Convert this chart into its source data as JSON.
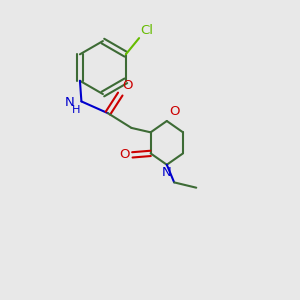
{
  "bg_color": "#e8e8e8",
  "bond_color": "#3d6b35",
  "O_color": "#cc0000",
  "N_color": "#0000cc",
  "Cl_color": "#66bb00",
  "line_width": 1.5,
  "font_size": 9.5,
  "figsize": [
    3.0,
    3.0
  ],
  "dpi": 100,
  "xlim": [
    0,
    10
  ],
  "ylim": [
    0,
    10
  ]
}
